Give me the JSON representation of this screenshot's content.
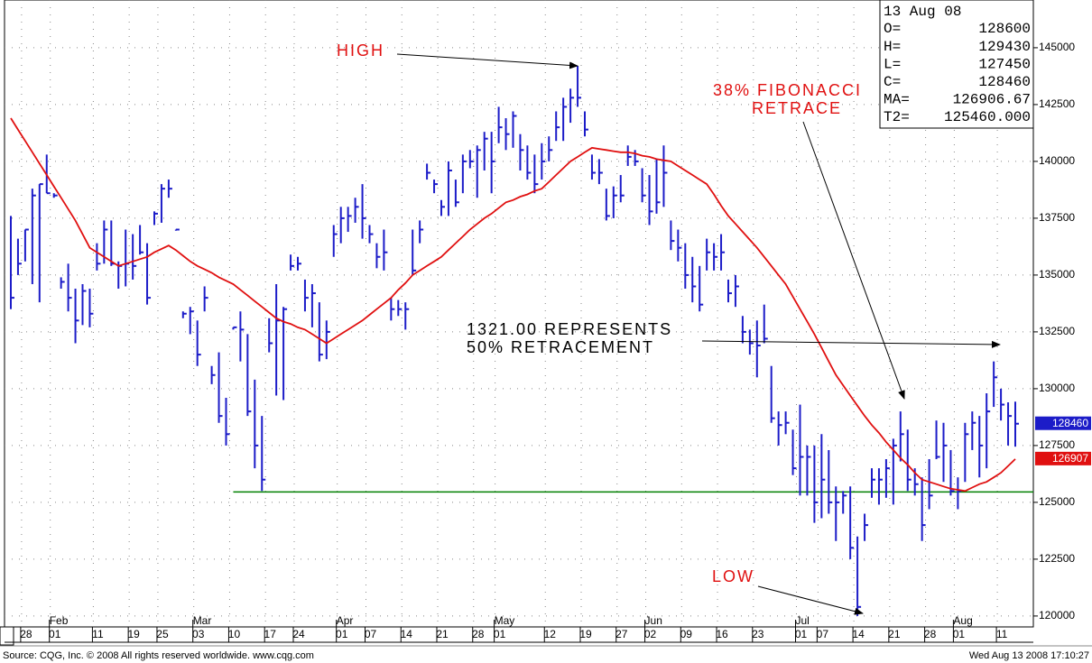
{
  "chart_data": {
    "type": "ohlc",
    "ylim": [
      119520,
      147100
    ],
    "yticks": [
      120000,
      122500,
      125000,
      127500,
      130000,
      132500,
      135000,
      137500,
      140000,
      142500,
      145000
    ],
    "grid": true,
    "categories": [
      null,
      null,
      "28",
      null,
      null,
      null,
      "01",
      null,
      null,
      null,
      null,
      null,
      "11",
      null,
      null,
      null,
      null,
      "19",
      null,
      null,
      null,
      "25",
      null,
      null,
      null,
      null,
      "03",
      null,
      null,
      null,
      null,
      "10",
      null,
      null,
      null,
      null,
      "17",
      null,
      null,
      null,
      "24",
      null,
      null,
      null,
      null,
      null,
      "01",
      null,
      null,
      null,
      "07",
      null,
      null,
      null,
      null,
      "14",
      null,
      null,
      null,
      null,
      "21",
      null,
      null,
      null,
      null,
      "28",
      null,
      null,
      "01",
      null,
      null,
      null,
      null,
      null,
      null,
      "12",
      null,
      null,
      null,
      null,
      "19",
      null,
      null,
      null,
      null,
      "27",
      null,
      null,
      null,
      "02",
      null,
      null,
      null,
      null,
      "09",
      null,
      null,
      null,
      null,
      "16",
      null,
      null,
      null,
      null,
      "23",
      null,
      null,
      null,
      null,
      null,
      "01",
      null,
      null,
      "07",
      null,
      null,
      null,
      null,
      "14",
      null,
      null,
      null,
      null,
      "21",
      null,
      null,
      null,
      null,
      "28",
      null,
      null,
      null,
      "01",
      null,
      null,
      null,
      null,
      null,
      "11",
      null,
      null
    ],
    "months": [
      null,
      null,
      null,
      null,
      null,
      null,
      "Feb",
      null,
      null,
      null,
      null,
      null,
      null,
      null,
      null,
      null,
      null,
      null,
      null,
      null,
      null,
      null,
      null,
      null,
      null,
      null,
      "Mar",
      null,
      null,
      null,
      null,
      null,
      null,
      null,
      null,
      null,
      null,
      null,
      null,
      null,
      null,
      null,
      null,
      null,
      null,
      null,
      "Apr",
      null,
      null,
      null,
      null,
      null,
      null,
      null,
      null,
      null,
      null,
      null,
      null,
      null,
      null,
      null,
      null,
      null,
      null,
      null,
      null,
      null,
      "May",
      null,
      null,
      null,
      null,
      null,
      null,
      null,
      null,
      null,
      null,
      null,
      null,
      null,
      null,
      null,
      null,
      null,
      null,
      null,
      null,
      "Jun",
      null,
      null,
      null,
      null,
      null,
      null,
      null,
      null,
      null,
      null,
      null,
      null,
      null,
      null,
      null,
      null,
      null,
      null,
      null,
      null,
      "Jul",
      null,
      null,
      null,
      null,
      null,
      null,
      null,
      null,
      null,
      null,
      null,
      null,
      null,
      null,
      null,
      null,
      null,
      null,
      null,
      null,
      null,
      "Aug",
      null,
      null,
      null,
      null,
      null,
      null,
      null,
      null
    ],
    "bars": {
      "color": "#1c1cc8",
      "high": [
        137600,
        136600,
        137000,
        138800,
        139000,
        140300,
        138600,
        134900,
        135500,
        134400,
        134600,
        134400,
        136400,
        137400,
        137400,
        135600,
        137000,
        136800,
        137200,
        136400,
        137800,
        139000,
        139200,
        137000,
        133400,
        133600,
        133000,
        134500,
        131000,
        131600,
        129600,
        132700,
        133400,
        132400,
        130400,
        128800,
        133100,
        134600,
        133600,
        135900,
        135800,
        134800,
        134600,
        133800,
        133000,
        137200,
        138000,
        138000,
        138400,
        139000,
        137200,
        136400,
        137000,
        134000,
        133900,
        133800,
        137000,
        137400,
        139900,
        139200,
        138300,
        140000,
        139200,
        140300,
        140500,
        140700,
        141300,
        141300,
        142400,
        141900,
        142200,
        141200,
        140700,
        140300,
        140800,
        141100,
        142200,
        142800,
        143200,
        144200,
        142200,
        140300,
        140100,
        138800,
        138900,
        139400,
        140700,
        140500,
        139700,
        139400,
        140100,
        140700,
        137400,
        137000,
        136400,
        135800,
        135400,
        136600,
        136400,
        136800,
        134800,
        135000,
        133200,
        132600,
        133000,
        133700,
        131000,
        129000,
        129000,
        128200,
        129300,
        127500,
        127500,
        128000,
        127300,
        125700,
        125500,
        125700,
        123500,
        124500,
        126500,
        126500,
        126900,
        127800,
        129000,
        128200,
        126500,
        126100,
        126900,
        128600,
        128500,
        127300,
        126100,
        128500,
        129000,
        128800,
        129800,
        131200,
        130000,
        129400,
        129430
      ],
      "low": [
        133500,
        135000,
        135600,
        134600,
        133800,
        138600,
        138400,
        134400,
        133400,
        132000,
        132800,
        132700,
        135200,
        135500,
        135400,
        134400,
        134500,
        134800,
        135900,
        133700,
        137200,
        137300,
        138400,
        136950,
        133100,
        132400,
        131000,
        133400,
        130200,
        128500,
        127500,
        132600,
        131200,
        128800,
        126500,
        125500,
        131600,
        129700,
        129500,
        135200,
        135200,
        133400,
        132700,
        131200,
        131300,
        135800,
        136400,
        136900,
        137300,
        136600,
        136400,
        135300,
        135200,
        133000,
        133200,
        132600,
        135000,
        136400,
        139200,
        138600,
        137600,
        137600,
        138000,
        138600,
        139700,
        138400,
        139600,
        138600,
        140800,
        140500,
        140600,
        139600,
        139200,
        138600,
        139200,
        140000,
        140900,
        140900,
        141700,
        142400,
        141100,
        139200,
        139000,
        137400,
        137500,
        138200,
        139800,
        139800,
        138200,
        137200,
        137700,
        138000,
        136100,
        135600,
        134400,
        133800,
        133400,
        135200,
        135200,
        135200,
        133800,
        133600,
        132000,
        131500,
        130500,
        132000,
        128500,
        127500,
        128000,
        126200,
        125300,
        125300,
        124100,
        124300,
        124500,
        123300,
        124500,
        122500,
        120000,
        123300,
        125200,
        124900,
        125200,
        124900,
        126800,
        125500,
        125300,
        123300,
        124700,
        126900,
        125900,
        125300,
        124700,
        125900,
        127300,
        126100,
        126500,
        129200,
        128600,
        127500,
        127450
      ],
      "close": [
        134000,
        135500,
        137000,
        138500,
        139000,
        138600,
        138500,
        134700,
        134000,
        133000,
        134300,
        133300,
        135500,
        137000,
        135500,
        135400,
        135500,
        135400,
        136000,
        134000,
        137700,
        138800,
        138800,
        137000,
        133300,
        133400,
        131500,
        134000,
        130600,
        128800,
        128000,
        132700,
        132600,
        129000,
        127500,
        126000,
        132000,
        133000,
        133500,
        135400,
        135500,
        134000,
        134200,
        131500,
        132500,
        136800,
        137500,
        137600,
        138000,
        137500,
        136800,
        135800,
        136000,
        133500,
        133500,
        133500,
        135200,
        137000,
        139500,
        139000,
        138000,
        139600,
        138200,
        140000,
        140000,
        140500,
        141000,
        140000,
        141500,
        141200,
        142000,
        140500,
        139500,
        139000,
        140000,
        140500,
        141500,
        142400,
        142800,
        142800,
        141400,
        139500,
        139500,
        137600,
        138500,
        138500,
        140200,
        140000,
        138500,
        137800,
        138200,
        139500,
        136500,
        136200,
        135000,
        134500,
        133700,
        136000,
        135800,
        136000,
        134200,
        134500,
        132500,
        132000,
        131900,
        132200,
        128700,
        128400,
        128500,
        126500,
        127000,
        127000,
        125000,
        126000,
        125000,
        125000,
        125300,
        123000,
        120400,
        124000,
        126000,
        126000,
        126500,
        127500,
        128000,
        126000,
        125800,
        124000,
        125300,
        127000,
        127500,
        125500,
        125500,
        128000,
        128500,
        127500,
        129000,
        130500,
        129300,
        128800,
        128460
      ]
    },
    "moving_average": {
      "color": "#e01010",
      "last_label": "126907",
      "values": [
        141900,
        141400,
        140900,
        140400,
        139900,
        139400,
        138900,
        138400,
        137900,
        137400,
        136800,
        136200,
        136000,
        135800,
        135600,
        135400,
        135500,
        135600,
        135700,
        135800,
        136000,
        136150,
        136300,
        136100,
        135850,
        135600,
        135400,
        135250,
        135100,
        134900,
        134750,
        134600,
        134350,
        134100,
        133850,
        133600,
        133350,
        133100,
        132950,
        132850,
        132700,
        132600,
        132400,
        132200,
        132000,
        132200,
        132400,
        132600,
        132800,
        133000,
        133250,
        133500,
        133750,
        134000,
        134350,
        134650,
        135000,
        135200,
        135400,
        135600,
        135800,
        136100,
        136400,
        136700,
        137000,
        137250,
        137500,
        137700,
        137950,
        138200,
        138300,
        138450,
        138550,
        138700,
        138800,
        139100,
        139400,
        139700,
        140000,
        140200,
        140400,
        140600,
        140550,
        140500,
        140450,
        140400,
        140400,
        140350,
        140250,
        140200,
        140100,
        140050,
        140000,
        139800,
        139600,
        139400,
        139200,
        139000,
        138550,
        138050,
        137600,
        137250,
        136900,
        136550,
        136200,
        135800,
        135400,
        135000,
        134600,
        134050,
        133500,
        132950,
        132400,
        131800,
        131200,
        130600,
        130150,
        129700,
        129250,
        128800,
        128400,
        128050,
        127650,
        127300,
        126950,
        126650,
        126300,
        126000,
        125900,
        125800,
        125700,
        125600,
        125550,
        125500,
        125650,
        125800,
        125900,
        126100,
        126300,
        126600,
        126906.67
      ]
    },
    "support": {
      "value": 125460,
      "color": "#008000"
    },
    "annotations": {
      "high": "HIGH",
      "fib": [
        "38% FIBONACCI",
        "RETRACE"
      ],
      "half": [
        "1321.00 REPRESENTS",
        "50% RETRACEMENT"
      ],
      "low": "LOW"
    },
    "info_box": {
      "date": "13 Aug 08",
      "rows": [
        {
          "label": "O=",
          "value": "128600"
        },
        {
          "label": "H=",
          "value": "129430"
        },
        {
          "label": "L=",
          "value": "127450"
        },
        {
          "label": "C=",
          "value": "128460"
        },
        {
          "label": "MA=",
          "value": "126906.67"
        },
        {
          "label": "T2=",
          "value": "125460.000"
        }
      ]
    },
    "footer": {
      "source": "Source: CQG, Inc. © 2008 All rights reserved worldwide. www.cqg.com",
      "timestamp": "Wed Aug 13 2008 17:10:27"
    }
  }
}
